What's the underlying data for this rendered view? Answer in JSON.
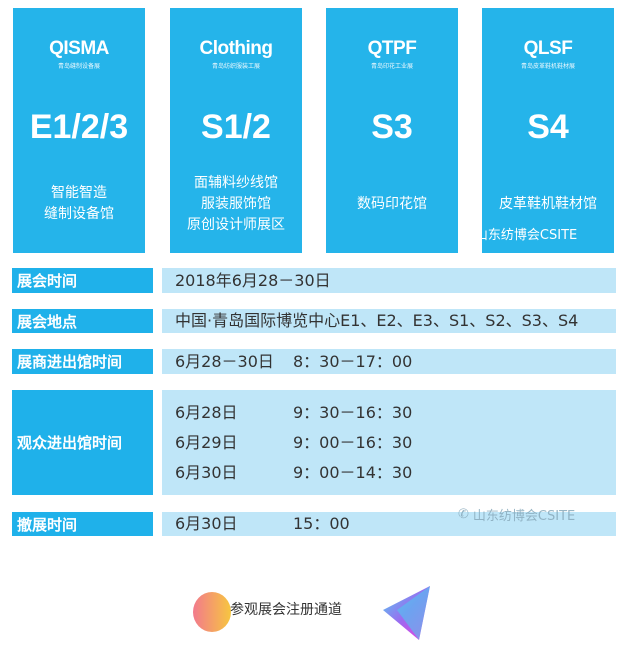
{
  "cards": [
    {
      "logo": "QISMA",
      "logo_sub": "青岛缝制设备展",
      "hall": "E1/2/3",
      "desc": [
        "智能智造",
        "缝制设备馆"
      ]
    },
    {
      "logo": "Clothing",
      "logo_sub": "青岛纺织服装工展",
      "hall": "S1/2",
      "desc": [
        "面辅料纱线馆",
        "服装服饰馆",
        "原创设计师展区"
      ]
    },
    {
      "logo": "QTPF",
      "logo_sub": "青岛印花工业展",
      "hall": "S3",
      "desc": [
        "数码印花馆"
      ]
    },
    {
      "logo": "QLSF",
      "logo_sub": "青岛皮革鞋机鞋材展",
      "hall": "S4",
      "desc": [
        "皮革鞋机鞋材馆"
      ]
    }
  ],
  "watermark": "山东纺博会CSITE",
  "rows": [
    {
      "label": "展会时间",
      "lines": [
        [
          "2018年6月28－30日",
          ""
        ]
      ]
    },
    {
      "label": "展会地点",
      "lines": [
        [
          "中国·青岛国际博览中心E1、E2、E3、S1、S2、S3、S4",
          ""
        ]
      ]
    },
    {
      "label": "展商进出馆时间",
      "lines": [
        [
          "6月28－30日",
          "8：30－17：00"
        ]
      ]
    },
    {
      "label": "观众进出馆时间",
      "lines": [
        [
          "6月28日",
          "9：30－16：30"
        ],
        [
          "6月29日",
          "9：00－16：30"
        ],
        [
          "6月30日",
          "9：00－14：30"
        ]
      ]
    },
    {
      "label": "撤展时间",
      "lines": [
        [
          "6月30日",
          "15：00"
        ]
      ]
    }
  ],
  "register_link": "参观展会注册通道",
  "colors": {
    "card": "#25b4ea",
    "label": "#1fb1ea",
    "value": "#bfe6f8"
  }
}
